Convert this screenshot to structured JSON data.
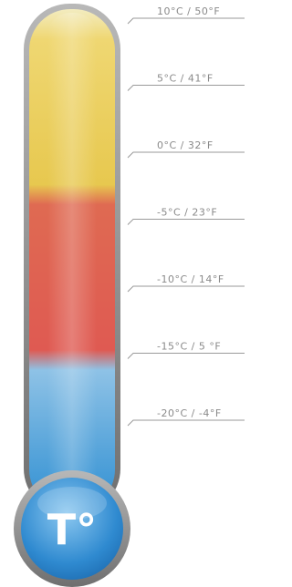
{
  "scale": {
    "labels": [
      "10°C / 50°F",
      "5°C / 41°F",
      "0°C / 32°F",
      "-5°C / 23°F",
      "-10°C / 14°F",
      "-15°C / 5 °F",
      "-20°C / -4°F"
    ]
  },
  "bulb": {
    "label": "T°"
  }
}
